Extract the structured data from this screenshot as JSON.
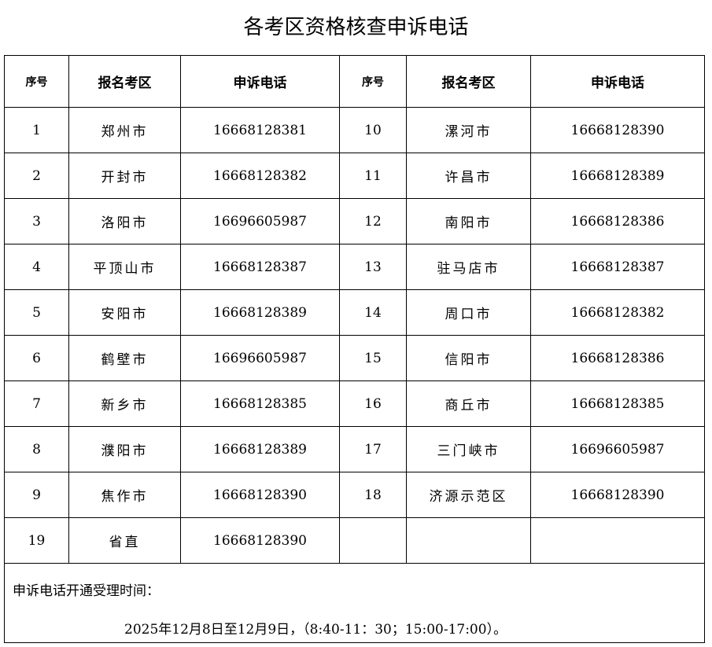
{
  "title": "各考区资格核查申诉电话",
  "headers": [
    "序号",
    "报名考区",
    "申诉电话",
    "序号",
    "报名考区",
    "申诉电话"
  ],
  "rows": [
    {
      "l": {
        "no": "1",
        "area": "郑州市",
        "phone": "16668128381"
      },
      "r": {
        "no": "10",
        "area": "漯河市",
        "phone": "16668128390"
      }
    },
    {
      "l": {
        "no": "2",
        "area": "开封市",
        "phone": "16668128382"
      },
      "r": {
        "no": "11",
        "area": "许昌市",
        "phone": "16668128389"
      }
    },
    {
      "l": {
        "no": "3",
        "area": "洛阳市",
        "phone": "16696605987"
      },
      "r": {
        "no": "12",
        "area": "南阳市",
        "phone": "16668128386"
      }
    },
    {
      "l": {
        "no": "4",
        "area": "平顶山市",
        "phone": "16668128387"
      },
      "r": {
        "no": "13",
        "area": "驻马店市",
        "phone": "16668128387"
      }
    },
    {
      "l": {
        "no": "5",
        "area": "安阳市",
        "phone": "16668128389"
      },
      "r": {
        "no": "14",
        "area": "周口市",
        "phone": "16668128382"
      }
    },
    {
      "l": {
        "no": "6",
        "area": "鹤壁市",
        "phone": "16696605987"
      },
      "r": {
        "no": "15",
        "area": "信阳市",
        "phone": "16668128386"
      }
    },
    {
      "l": {
        "no": "7",
        "area": "新乡市",
        "phone": "16668128385"
      },
      "r": {
        "no": "16",
        "area": "商丘市",
        "phone": "16668128385"
      }
    },
    {
      "l": {
        "no": "8",
        "area": "濮阳市",
        "phone": "16668128389"
      },
      "r": {
        "no": "17",
        "area": "三门峡市",
        "phone": "16696605987"
      }
    },
    {
      "l": {
        "no": "9",
        "area": "焦作市",
        "phone": "16668128390"
      },
      "r": {
        "no": "18",
        "area": "济源示范区",
        "phone": "16668128390"
      }
    },
    {
      "l": {
        "no": "19",
        "area": "省直",
        "phone": "16668128390"
      },
      "r": {
        "no": "",
        "area": "",
        "phone": ""
      }
    }
  ],
  "footer": {
    "label": "申诉电话开通受理时间：",
    "time": "2025年12月8日至12月9日，（8:40-11：30；15:00-17:00）。"
  }
}
